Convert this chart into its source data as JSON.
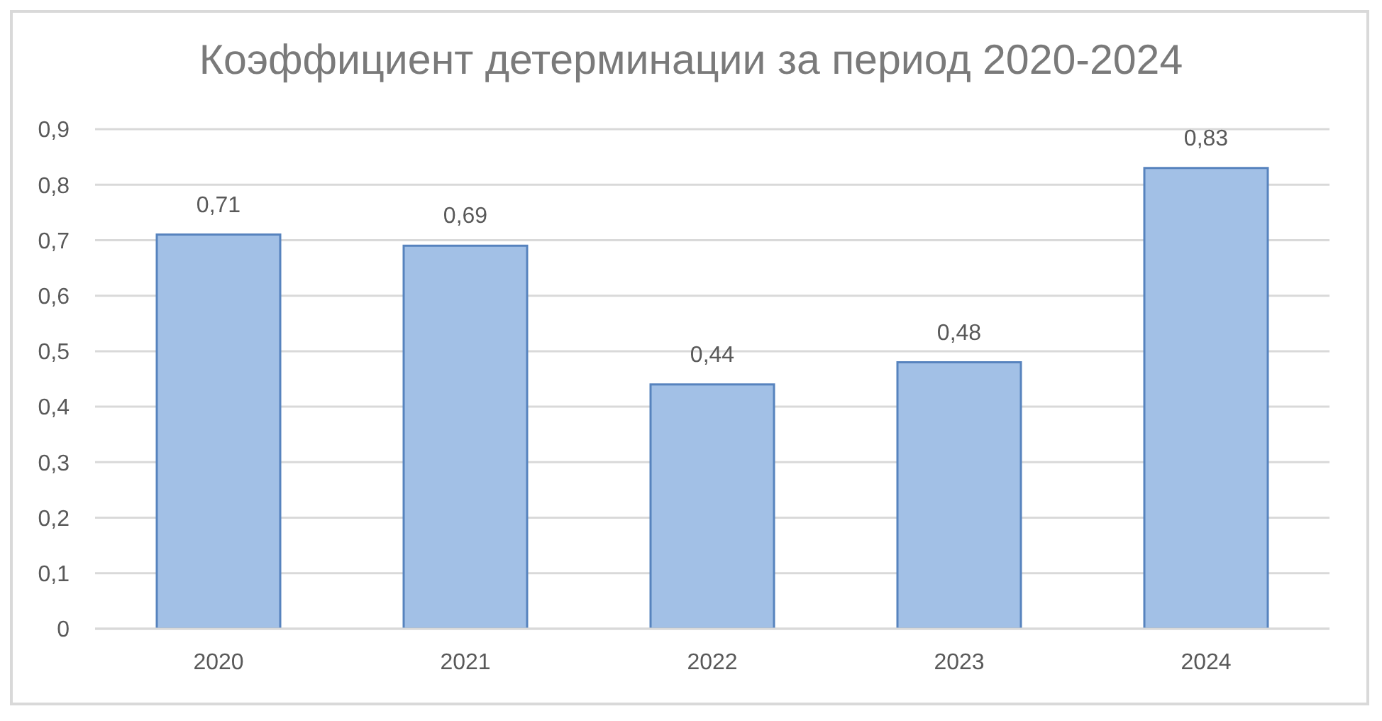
{
  "chart_data": {
    "type": "bar",
    "title": "Коэффициент детерминации за период 2020-2024",
    "categories": [
      "2020",
      "2021",
      "2022",
      "2023",
      "2024"
    ],
    "values": [
      0.71,
      0.69,
      0.44,
      0.48,
      0.83
    ],
    "value_labels": [
      "0,71",
      "0,69",
      "0,44",
      "0,48",
      "0,83"
    ],
    "color": "#a2c0e6",
    "ylim": [
      0,
      0.9
    ],
    "yticks": [
      {
        "value": 0,
        "label": "0"
      },
      {
        "value": 0.1,
        "label": "0,1"
      },
      {
        "value": 0.2,
        "label": "0,2"
      },
      {
        "value": 0.3,
        "label": "0,3"
      },
      {
        "value": 0.4,
        "label": "0,4"
      },
      {
        "value": 0.5,
        "label": "0,5"
      },
      {
        "value": 0.6,
        "label": "0,6"
      },
      {
        "value": 0.7,
        "label": "0,7"
      },
      {
        "value": 0.8,
        "label": "0,8"
      },
      {
        "value": 0.9,
        "label": "0,9"
      }
    ],
    "grid": "y"
  }
}
